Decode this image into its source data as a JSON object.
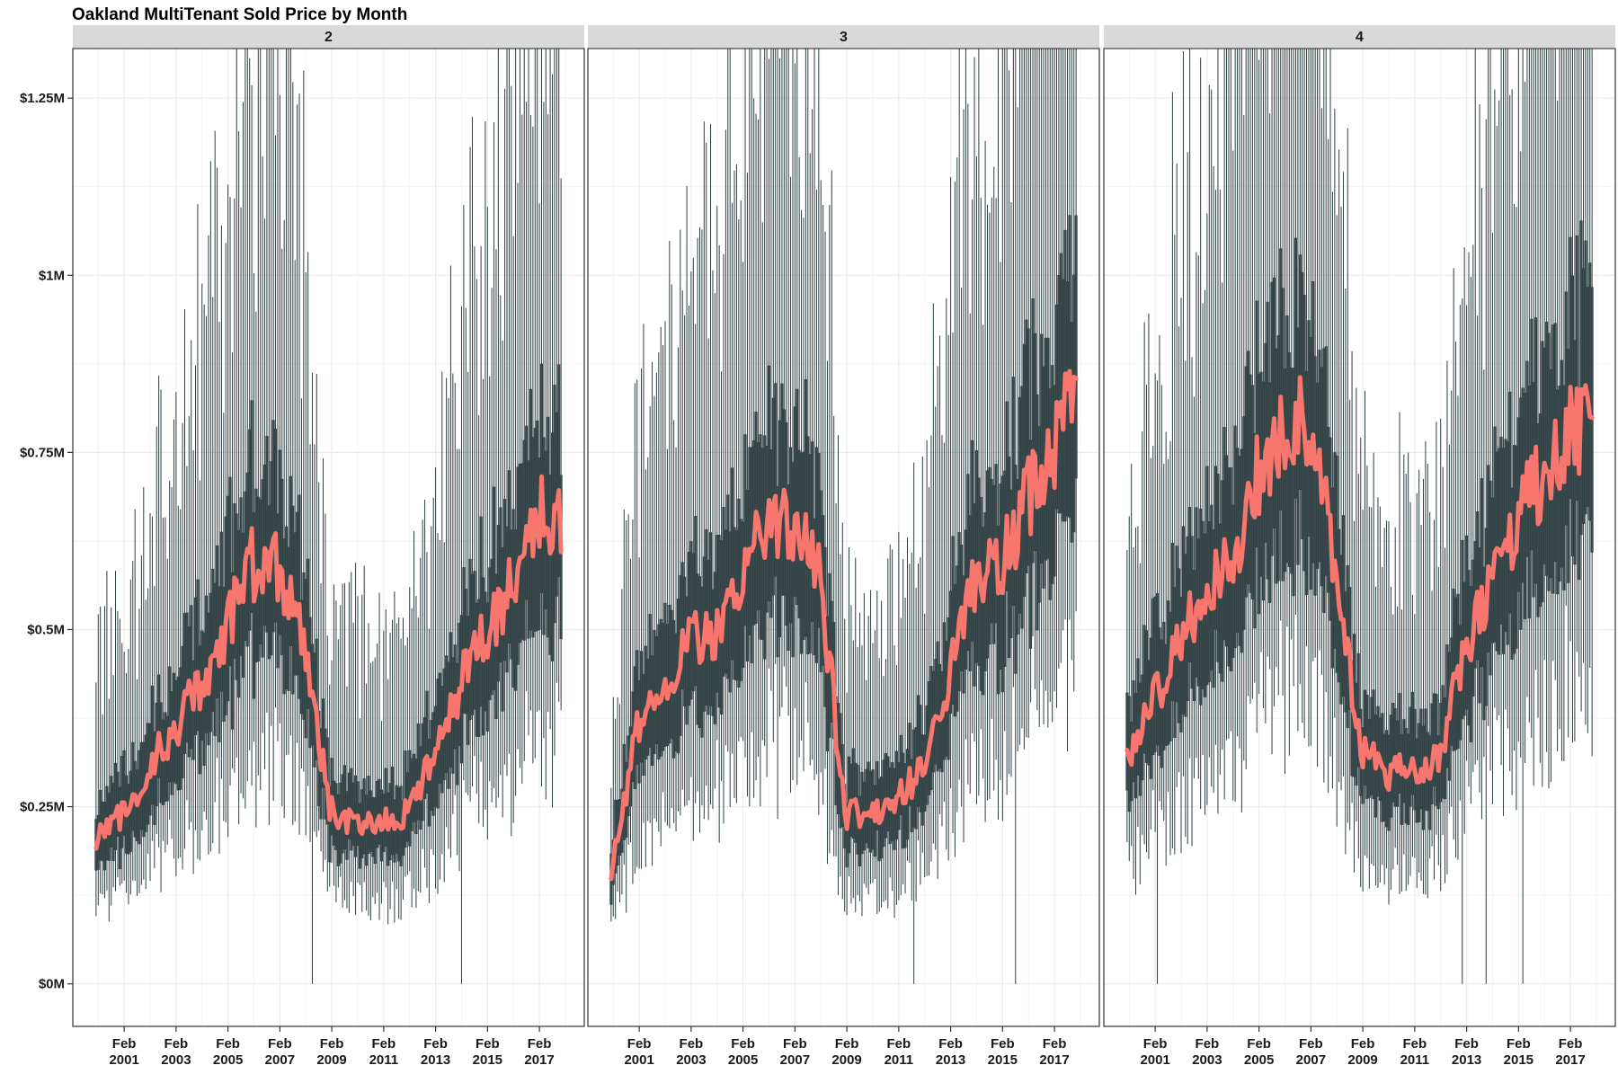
{
  "chart_data": {
    "type": "boxplot",
    "title": "Oakland MultiTenant Sold Price by Month",
    "xlabel": "",
    "ylabel": "",
    "ylim": [
      -60000,
      1320000
    ],
    "y_ticks": [
      0,
      250000,
      500000,
      750000,
      1000000,
      1250000
    ],
    "y_tick_labels": [
      "$0M",
      "$0.25M",
      "$0.5M",
      "$0.75M",
      "$1M",
      "$1.25M"
    ],
    "x_ticks": [
      "2001-02",
      "2003-02",
      "2005-02",
      "2007-02",
      "2009-02",
      "2011-02",
      "2013-02",
      "2015-02",
      "2017-02"
    ],
    "x_tick_labels": [
      "Feb\n2001",
      "Feb\n2003",
      "Feb\n2005",
      "Feb\n2007",
      "Feb\n2009",
      "Feb\n2011",
      "Feb\n2013",
      "Feb\n2015",
      "Feb\n2017"
    ],
    "x_start": "2000-01",
    "x_end": "2017-12",
    "grid": true,
    "colors": {
      "box": "#2c3e40",
      "median": "#f8766d",
      "strip": "#d9d9d9",
      "panel_border": "#333333",
      "grid": "#ebebeb"
    },
    "facets": [
      {
        "label": "2",
        "median_anchors": [
          [
            "2000-01",
            200000
          ],
          [
            "2001-01",
            240000
          ],
          [
            "2002-01",
            300000
          ],
          [
            "2003-01",
            360000
          ],
          [
            "2004-01",
            420000
          ],
          [
            "2005-01",
            500000
          ],
          [
            "2006-01",
            590000
          ],
          [
            "2007-01",
            590000
          ],
          [
            "2008-01",
            480000
          ],
          [
            "2009-01",
            250000
          ],
          [
            "2010-01",
            220000
          ],
          [
            "2011-01",
            230000
          ],
          [
            "2012-01",
            240000
          ],
          [
            "2013-01",
            320000
          ],
          [
            "2014-01",
            420000
          ],
          [
            "2015-01",
            490000
          ],
          [
            "2016-01",
            560000
          ],
          [
            "2017-01",
            670000
          ],
          [
            "2017-12",
            650000
          ]
        ]
      },
      {
        "label": "3",
        "median_anchors": [
          [
            "2000-01",
            150000
          ],
          [
            "2001-01",
            370000
          ],
          [
            "2002-01",
            420000
          ],
          [
            "2003-01",
            480000
          ],
          [
            "2004-01",
            500000
          ],
          [
            "2005-01",
            550000
          ],
          [
            "2006-01",
            660000
          ],
          [
            "2007-01",
            650000
          ],
          [
            "2008-01",
            570000
          ],
          [
            "2008-07",
            420000
          ],
          [
            "2009-01",
            240000
          ],
          [
            "2010-01",
            240000
          ],
          [
            "2011-01",
            260000
          ],
          [
            "2012-01",
            300000
          ],
          [
            "2013-01",
            430000
          ],
          [
            "2014-01",
            560000
          ],
          [
            "2015-01",
            590000
          ],
          [
            "2016-01",
            680000
          ],
          [
            "2017-01",
            760000
          ],
          [
            "2017-12",
            820000
          ]
        ]
      },
      {
        "label": "4",
        "median_anchors": [
          [
            "2000-01",
            320000
          ],
          [
            "2001-01",
            400000
          ],
          [
            "2002-01",
            480000
          ],
          [
            "2003-01",
            560000
          ],
          [
            "2004-01",
            600000
          ],
          [
            "2005-01",
            710000
          ],
          [
            "2006-01",
            770000
          ],
          [
            "2007-01",
            800000
          ],
          [
            "2008-01",
            600000
          ],
          [
            "2009-01",
            330000
          ],
          [
            "2010-01",
            300000
          ],
          [
            "2011-01",
            310000
          ],
          [
            "2012-01",
            320000
          ],
          [
            "2013-01",
            460000
          ],
          [
            "2014-01",
            560000
          ],
          [
            "2015-01",
            650000
          ],
          [
            "2016-01",
            720000
          ],
          [
            "2017-01",
            780000
          ],
          [
            "2017-12",
            790000
          ]
        ]
      }
    ]
  }
}
